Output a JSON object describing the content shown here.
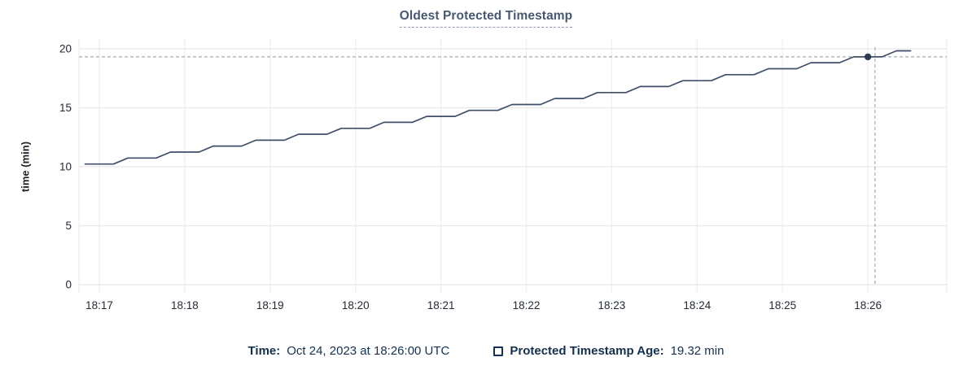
{
  "header": {
    "title": "Oldest Protected Timestamp"
  },
  "chart_data": {
    "type": "line",
    "title": "Oldest Protected Timestamp",
    "xlabel": "",
    "ylabel": "time (min)",
    "grid": true,
    "legend_position": "bottom",
    "y_domain": [
      0,
      20.83
    ],
    "x_domain_seconds_after_18_17": [
      -14.3,
      595.4
    ],
    "y_ticks": [
      {
        "v": 0,
        "label": "0"
      },
      {
        "v": 5,
        "label": "5"
      },
      {
        "v": 10,
        "label": "10"
      },
      {
        "v": 15,
        "label": "15"
      },
      {
        "v": 20,
        "label": "20"
      }
    ],
    "x_ticks": [
      {
        "t": 0,
        "label": "18:17"
      },
      {
        "t": 60,
        "label": "18:18"
      },
      {
        "t": 120,
        "label": "18:19"
      },
      {
        "t": 180,
        "label": "18:20"
      },
      {
        "t": 240,
        "label": "18:21"
      },
      {
        "t": 300,
        "label": "18:22"
      },
      {
        "t": 360,
        "label": "18:23"
      },
      {
        "t": 420,
        "label": "18:24"
      },
      {
        "t": 480,
        "label": "18:25"
      },
      {
        "t": 540,
        "label": "18:26"
      }
    ],
    "series": [
      {
        "name": "Protected Timestamp Age",
        "unit": "min",
        "points_t_seconds_after_18_17_vs_min": [
          [
            -10,
            10.23
          ],
          [
            0,
            10.23
          ],
          [
            10,
            10.23
          ],
          [
            20,
            10.74
          ],
          [
            30,
            10.74
          ],
          [
            40,
            10.74
          ],
          [
            50,
            11.24
          ],
          [
            60,
            11.24
          ],
          [
            70,
            11.24
          ],
          [
            80,
            11.75
          ],
          [
            90,
            11.75
          ],
          [
            100,
            11.75
          ],
          [
            110,
            12.25
          ],
          [
            120,
            12.25
          ],
          [
            130,
            12.25
          ],
          [
            140,
            12.76
          ],
          [
            150,
            12.76
          ],
          [
            160,
            12.76
          ],
          [
            170,
            13.26
          ],
          [
            180,
            13.26
          ],
          [
            190,
            13.26
          ],
          [
            200,
            13.77
          ],
          [
            210,
            13.77
          ],
          [
            220,
            13.77
          ],
          [
            230,
            14.27
          ],
          [
            240,
            14.27
          ],
          [
            250,
            14.27
          ],
          [
            260,
            14.78
          ],
          [
            270,
            14.78
          ],
          [
            280,
            14.78
          ],
          [
            290,
            15.28
          ],
          [
            300,
            15.28
          ],
          [
            310,
            15.28
          ],
          [
            320,
            15.79
          ],
          [
            330,
            15.79
          ],
          [
            340,
            15.79
          ],
          [
            350,
            16.29
          ],
          [
            360,
            16.29
          ],
          [
            370,
            16.29
          ],
          [
            380,
            16.8
          ],
          [
            390,
            16.8
          ],
          [
            400,
            16.8
          ],
          [
            410,
            17.3
          ],
          [
            420,
            17.3
          ],
          [
            430,
            17.3
          ],
          [
            440,
            17.81
          ],
          [
            450,
            17.81
          ],
          [
            460,
            17.81
          ],
          [
            470,
            18.31
          ],
          [
            480,
            18.31
          ],
          [
            490,
            18.31
          ],
          [
            500,
            18.82
          ],
          [
            510,
            18.82
          ],
          [
            520,
            18.82
          ],
          [
            530,
            19.32
          ],
          [
            540,
            19.32
          ],
          [
            550,
            19.32
          ],
          [
            560,
            19.83
          ],
          [
            570,
            19.83
          ]
        ]
      }
    ],
    "highlight": {
      "t_seconds": 540,
      "value_min": 19.32,
      "crosshair_t_seconds": 545
    }
  },
  "tooltip": {
    "time_label": "Time:",
    "time_value": "Oct 24, 2023 at 18:26:00 UTC",
    "series_label": "Protected Timestamp Age:",
    "series_value": "19.32 min"
  },
  "colors": {
    "title": "#475872",
    "title_underline": "#8da0b8",
    "legend_text": "#14304f",
    "checkbox_border": "#16324f",
    "axis_text": "#232b36",
    "axis_title_text": "#1d232e",
    "grid_h": "#e8e8e8",
    "grid_v": "#f0f0f0",
    "crosshair": "#9fadbb",
    "line": "#404f68",
    "dot": "#2b3c55"
  }
}
